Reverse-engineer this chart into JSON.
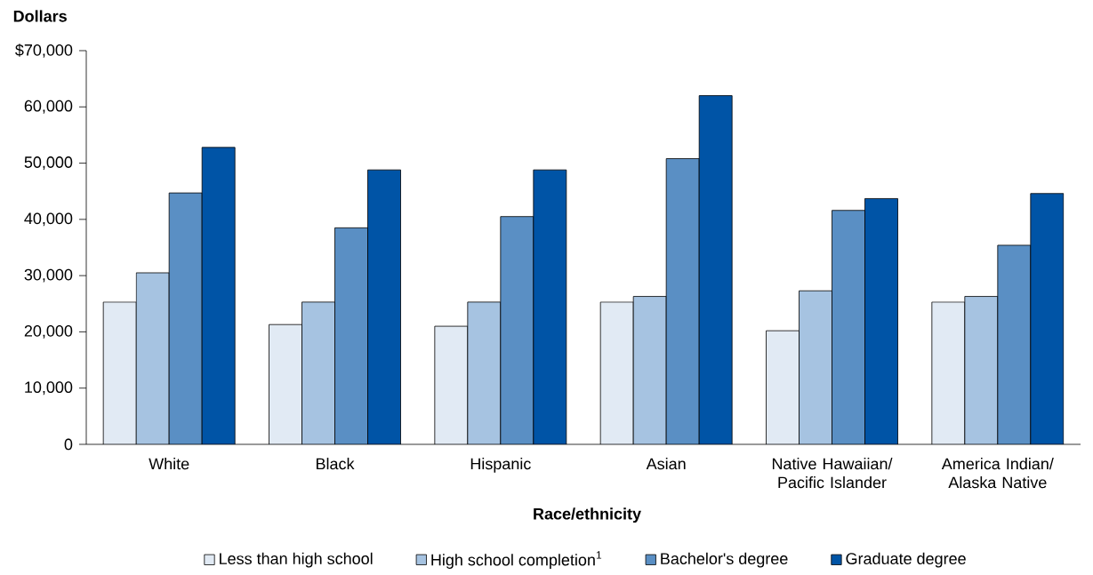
{
  "chart_data": {
    "type": "bar",
    "ylabel": "Dollars",
    "xlabel": "Race/ethnicity",
    "categories": [
      "White",
      "Black",
      "Hispanic",
      "Asian",
      "Native Hawaiian/ Pacific Islander",
      "America Indian/ Alaska Native"
    ],
    "series": [
      {
        "name": "Less than high school",
        "color": "#e1eaf4",
        "values": [
          25300,
          21300,
          21000,
          25300,
          20200,
          25300
        ]
      },
      {
        "name": "High school completion$^{1}$",
        "color": "#a6c3e1",
        "values": [
          30500,
          25300,
          25300,
          26300,
          27300,
          26300
        ]
      },
      {
        "name": "Bachelor's degree",
        "color": "#5a8fc4",
        "values": [
          44700,
          38500,
          40500,
          50800,
          41600,
          35400
        ]
      },
      {
        "name": "Graduate degree",
        "color": "#0054a6",
        "values": [
          52800,
          48800,
          48800,
          62000,
          43700,
          44600
        ]
      }
    ],
    "ylim": [
      0,
      70000
    ],
    "yticks": [
      {
        "value": 0,
        "label": "0"
      },
      {
        "value": 10000,
        "label": "10,000"
      },
      {
        "value": 20000,
        "label": "20,000"
      },
      {
        "value": 30000,
        "label": "30,000"
      },
      {
        "value": 40000,
        "label": "40,000"
      },
      {
        "value": 50000,
        "label": "50,000"
      },
      {
        "value": 60000,
        "label": "60,000"
      },
      {
        "value": 70000,
        "label": "$70,000"
      }
    ],
    "grid": false,
    "legend": "bottom"
  }
}
